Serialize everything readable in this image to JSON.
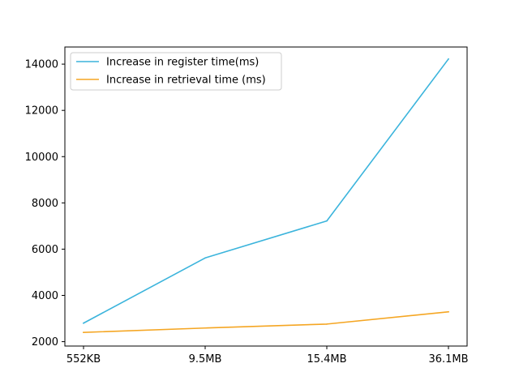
{
  "chart_data": {
    "type": "line",
    "categories": [
      "552KB",
      "9.5MB",
      "15.4MB",
      "36.1MB"
    ],
    "series": [
      {
        "name": "Increase in register time(ms)",
        "values": [
          2800,
          5620,
          7220,
          14220
        ],
        "color": "#3bb4dc"
      },
      {
        "name": "Increase in retrieval time (ms)",
        "values": [
          2400,
          2590,
          2760,
          3290
        ],
        "color": "#f5a623"
      }
    ],
    "yticks": [
      2000,
      4000,
      6000,
      8000,
      10000,
      12000,
      14000
    ],
    "ylim": [
      1810,
      14740
    ],
    "grid": false,
    "legend_position": "upper-left",
    "title": "",
    "xlabel": "",
    "ylabel": ""
  }
}
